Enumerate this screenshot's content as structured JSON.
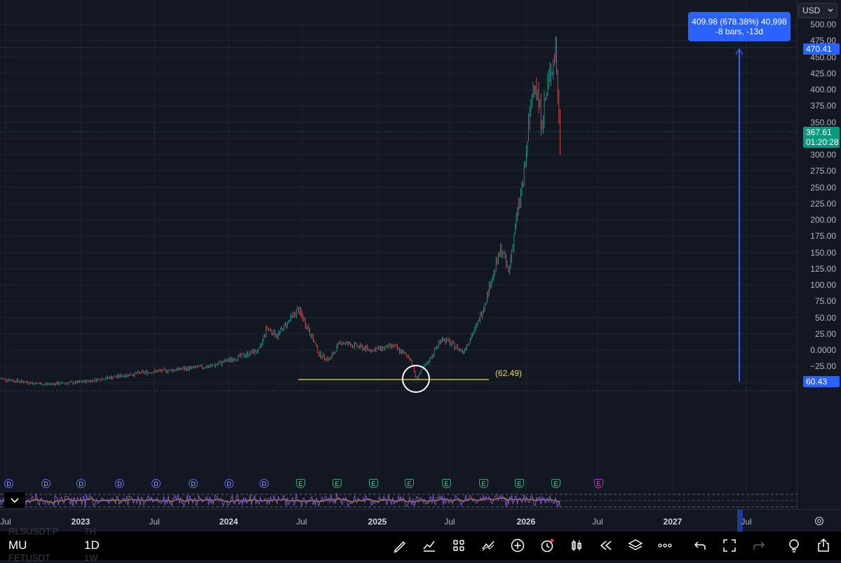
{
  "price_scale": {
    "currency": "USD",
    "ticks": [
      "500.00",
      "475.00",
      "450.00",
      "425.00",
      "400.00",
      "375.00",
      "350.00",
      "325.00",
      "300.00",
      "275.00",
      "250.00",
      "225.00",
      "200.00",
      "175.00",
      "150.00",
      "125.00",
      "100.00",
      "75.00",
      "50.00",
      "25.00",
      "0.0000",
      "−25.00",
      "−50.00"
    ],
    "high_tag": "470.41",
    "low_tag": "60.43",
    "last_price": "367.61",
    "countdown": "01:20:28"
  },
  "measure": {
    "line1": "409.98 (678.38%) 40,998",
    "line2": "-8 bars, -13d"
  },
  "support": {
    "label": "(62.49)"
  },
  "time_axis": {
    "labels": [
      {
        "text": "Jul",
        "year": false
      },
      {
        "text": "2023",
        "year": true
      },
      {
        "text": "Jul",
        "year": false
      },
      {
        "text": "2024",
        "year": true
      },
      {
        "text": "Jul",
        "year": false
      },
      {
        "text": "2025",
        "year": true
      },
      {
        "text": "Jul",
        "year": false
      },
      {
        "text": "2026",
        "year": true
      },
      {
        "text": "Jul",
        "year": false
      },
      {
        "text": "2027",
        "year": true
      },
      {
        "text": "Jul",
        "year": false
      }
    ]
  },
  "events": {
    "dividend_letter": "D",
    "earnings_letter": "E",
    "dividend_count": 8,
    "earnings_count": 8,
    "future_count": 1
  },
  "bottom_bar": {
    "symbol": "MU",
    "interval": "1D",
    "ghost_rows": [
      {
        "symbol": "RLSUSDT.P",
        "interval": "7H"
      },
      {
        "symbol": "FETUSDT",
        "interval": "1W"
      }
    ],
    "tools": [
      "brush-icon",
      "chart-type-icon",
      "grid-icon",
      "indicators-icon",
      "add-icon",
      "alert-clock-icon",
      "candle-icon",
      "replay-icon",
      "layers-icon",
      "more-icon",
      "undo-icon",
      "fullscreen-icon",
      "redo-icon",
      "idea-icon",
      "share-icon"
    ]
  },
  "colors": {
    "background": "#131722",
    "up": "#26a69a",
    "down": "#ef5350",
    "measure": "#2962ff",
    "support_line": "#e8dc4a",
    "rsi_line": "#7e57c2",
    "rsi_ma": "#f7a21b"
  }
}
